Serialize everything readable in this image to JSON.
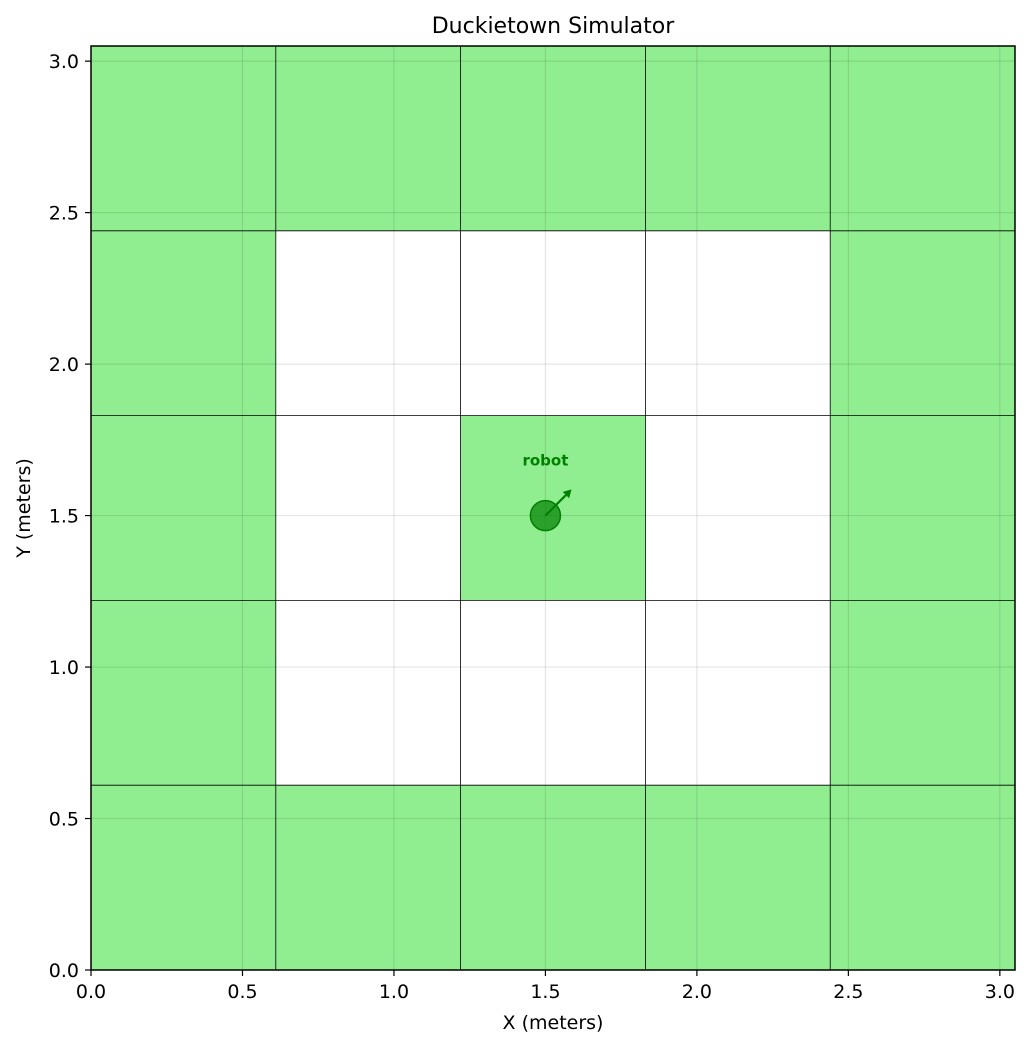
{
  "window": {
    "title": "Duckietown Simulator"
  },
  "chart_data": {
    "type": "heatmap",
    "title": "Duckietown Simulator",
    "xlabel": "X (meters)",
    "ylabel": "Y (meters)",
    "xlim": [
      0.0,
      3.05
    ],
    "ylim": [
      0.0,
      3.05
    ],
    "x_ticks": [
      "0.0",
      "0.5",
      "1.0",
      "1.5",
      "2.0",
      "2.5",
      "3.0"
    ],
    "y_ticks": [
      "0.0",
      "0.5",
      "1.0",
      "1.5",
      "2.0",
      "2.5",
      "3.0"
    ],
    "grid": true,
    "tile_size": 0.61,
    "grid_rows": 5,
    "grid_cols": 5,
    "tiles_top_to_bottom": [
      [
        "road",
        "road",
        "road",
        "road",
        "road"
      ],
      [
        "road",
        "empty",
        "empty",
        "empty",
        "road"
      ],
      [
        "road",
        "empty",
        "road",
        "empty",
        "road"
      ],
      [
        "road",
        "empty",
        "empty",
        "empty",
        "road"
      ],
      [
        "road",
        "road",
        "road",
        "road",
        "road"
      ]
    ],
    "tile_colors": {
      "road": "#90ee90",
      "empty": "#ffffff"
    },
    "robot": {
      "label": "robot",
      "x": 1.5,
      "y": 1.5,
      "heading_deg": 45,
      "color": "#008000"
    }
  }
}
